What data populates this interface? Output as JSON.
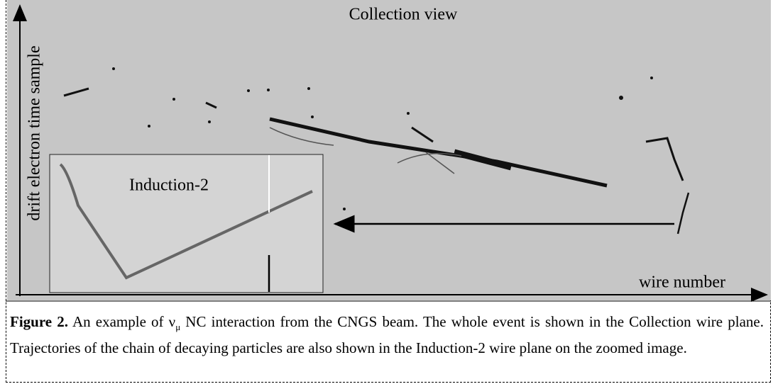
{
  "figure": {
    "title": "Collection view",
    "y_axis_label": "drift electron time sample",
    "x_axis_label": "wire number",
    "inset_label": "Induction-2"
  },
  "caption": {
    "label": "Figure 2.",
    "text_before": "An example of ν",
    "subscript": "μ",
    "text_after": " NC interaction from the CNGS beam. The whole event is shown in the Collection wire plane. Trajectories of the chain of decaying particles are also shown in the Induction-2 wire plane on the zoomed image."
  }
}
